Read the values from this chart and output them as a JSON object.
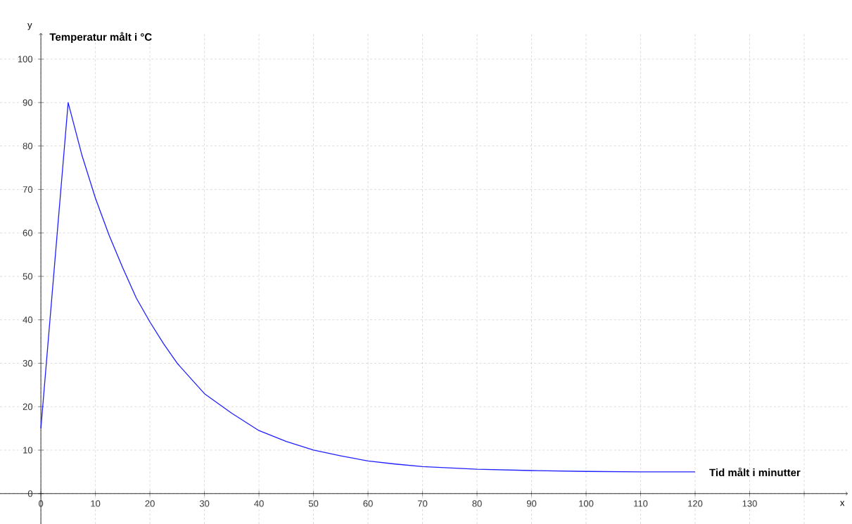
{
  "chart_data": {
    "type": "line",
    "xlabel": "x",
    "ylabel": "y",
    "annotations": [
      "Temperatur målt i °C",
      "Tid målt i minutter"
    ],
    "x": [
      0,
      5,
      7.5,
      10,
      12.5,
      15,
      17.5,
      20,
      22.5,
      25,
      27.5,
      30,
      35,
      40,
      45,
      50,
      55,
      60,
      65,
      70,
      80,
      90,
      100,
      110,
      120
    ],
    "series": [
      {
        "color": "#1f1fff",
        "values": [
          15,
          90,
          78,
          68,
          59.5,
          52,
          45,
          39.5,
          34.5,
          30,
          26.5,
          23,
          18.5,
          14.5,
          12,
          10,
          8.7,
          7.5,
          6.8,
          6.2,
          5.6,
          5.3,
          5.1,
          5,
          5
        ]
      }
    ],
    "xlim": [
      -7.5,
      148
    ],
    "ylim": [
      -7,
      106
    ],
    "xticks": [
      0,
      10,
      20,
      30,
      40,
      50,
      60,
      70,
      80,
      90,
      100,
      110,
      120,
      130,
      {
        "value": 140,
        "label": null
      }
    ],
    "yticks": [
      0,
      10,
      20,
      30,
      40,
      50,
      60,
      70,
      80,
      90,
      100
    ],
    "grid": true,
    "line_style": "solid",
    "marker": "none"
  }
}
